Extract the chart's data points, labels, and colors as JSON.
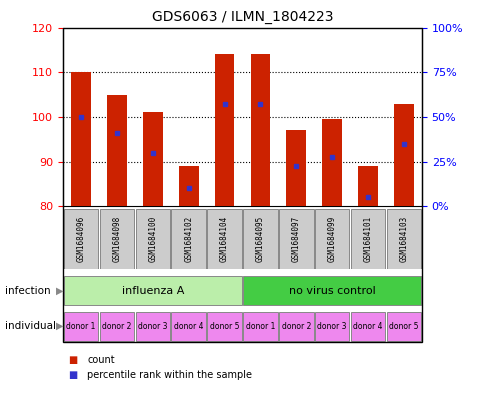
{
  "title": "GDS6063 / ILMN_1804223",
  "samples": [
    "GSM1684096",
    "GSM1684098",
    "GSM1684100",
    "GSM1684102",
    "GSM1684104",
    "GSM1684095",
    "GSM1684097",
    "GSM1684099",
    "GSM1684101",
    "GSM1684103"
  ],
  "bar_bottom": 80,
  "bar_tops": [
    110,
    105,
    101,
    89,
    114,
    114,
    97,
    99.5,
    89,
    103
  ],
  "blue_markers": [
    100,
    96.5,
    92,
    84,
    103,
    103,
    89,
    91,
    82,
    94
  ],
  "ylim": [
    80,
    120
  ],
  "right_ylim": [
    0,
    100
  ],
  "right_yticks": [
    0,
    25,
    50,
    75,
    100
  ],
  "right_yticklabels": [
    "0%",
    "25%",
    "50%",
    "75%",
    "100%"
  ],
  "left_yticks": [
    80,
    90,
    100,
    110,
    120
  ],
  "bar_color": "#cc2200",
  "blue_color": "#3333cc",
  "infection_groups": [
    {
      "label": "influenza A",
      "start": 0,
      "end": 5,
      "color": "#bbeeaa"
    },
    {
      "label": "no virus control",
      "start": 5,
      "end": 10,
      "color": "#44cc44"
    }
  ],
  "donors": [
    "donor 1",
    "donor 2",
    "donor 3",
    "donor 4",
    "donor 5",
    "donor 1",
    "donor 2",
    "donor 3",
    "donor 4",
    "donor 5"
  ],
  "donor_color": "#ee88ee",
  "sample_bg_color": "#cccccc",
  "legend_count_color": "#cc2200",
  "legend_pct_color": "#3333cc"
}
